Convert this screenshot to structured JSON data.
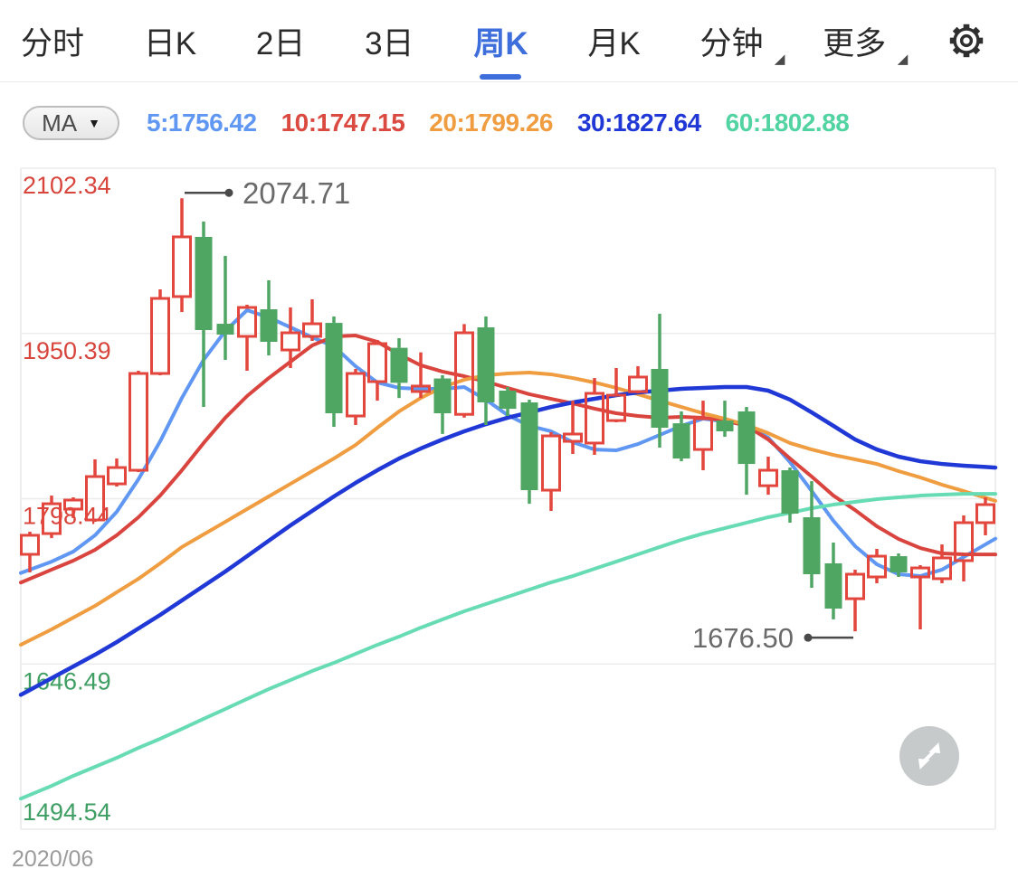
{
  "nav": {
    "items": [
      {
        "label": "分时",
        "active": false,
        "dropdown": false
      },
      {
        "label": "日K",
        "active": false,
        "dropdown": false
      },
      {
        "label": "2日",
        "active": false,
        "dropdown": false
      },
      {
        "label": "3日",
        "active": false,
        "dropdown": false
      },
      {
        "label": "周K",
        "active": true,
        "dropdown": false
      },
      {
        "label": "月K",
        "active": false,
        "dropdown": false
      },
      {
        "label": "分钟",
        "active": false,
        "dropdown": true
      },
      {
        "label": "更多",
        "active": false,
        "dropdown": true
      }
    ],
    "dropdown_marker": "◢",
    "active_color": "#3d6edb",
    "settings_icon": "gear-icon"
  },
  "indicator_bar": {
    "selector_label": "MA",
    "dropdown_icon": "▼",
    "values": [
      {
        "label": "5:1756.42",
        "color": "#5f97f2"
      },
      {
        "label": "10:1747.15",
        "color": "#db4a41"
      },
      {
        "label": "20:1799.26",
        "color": "#ef9d40"
      },
      {
        "label": "30:1827.64",
        "color": "#2038d5"
      },
      {
        "label": "60:1802.88",
        "color": "#52d3a2"
      }
    ]
  },
  "chart_data": {
    "type": "candlestick",
    "period": "weekly",
    "xlabel_start": "2020/06",
    "ylim": [
      1494.54,
      2102.34
    ],
    "grid": true,
    "y_ticks": [
      {
        "text": "2102.34",
        "color": "#d8453d"
      },
      {
        "text": "1950.39",
        "color": "#d8453d"
      },
      {
        "text": "1798.44",
        "color": "#d8453d"
      },
      {
        "text": "1646.49",
        "color": "#3f9e63"
      },
      {
        "text": "1494.54",
        "color": "#3f9e63"
      }
    ],
    "up_color": "#e2463d",
    "down_color": "#4ea662",
    "annotations": {
      "high": {
        "text": "2074.71",
        "value": 2074.71,
        "candle_index": 7
      },
      "low": {
        "text": "1676.50",
        "value": 1676.5,
        "candle_index": 38
      }
    },
    "candles_format": [
      "open",
      "high",
      "low",
      "close"
    ],
    "candles": [
      [
        1747.3,
        1768.1,
        1730.7,
        1764.8
      ],
      [
        1766.4,
        1801.3,
        1762.2,
        1793.8
      ],
      [
        1788.9,
        1799.7,
        1780.6,
        1797.2
      ],
      [
        1778.9,
        1834.6,
        1777.2,
        1818.8
      ],
      [
        1812.1,
        1835.4,
        1809.6,
        1827.1
      ],
      [
        1824.6,
        1916.1,
        1822.9,
        1913.6
      ],
      [
        1913.6,
        1990.9,
        1911.9,
        1982.6
      ],
      [
        1984.3,
        2074.7,
        1970.1,
        2039.2
      ],
      [
        2039.2,
        2053.3,
        1882.8,
        1953.5
      ],
      [
        1959.3,
        2021.7,
        1926.1,
        1949.3
      ],
      [
        1947.7,
        1976.8,
        1916.1,
        1974.3
      ],
      [
        1972.6,
        1999.3,
        1930.2,
        1942.7
      ],
      [
        1935.2,
        1974.3,
        1918.6,
        1951.0
      ],
      [
        1947.7,
        1981.8,
        1943.5,
        1959.3
      ],
      [
        1960.1,
        1966.0,
        1864.5,
        1877.0
      ],
      [
        1874.5,
        1917.8,
        1866.2,
        1913.6
      ],
      [
        1906.1,
        1944.4,
        1888.6,
        1941.0
      ],
      [
        1937.2,
        1946.0,
        1891.0,
        1905.0
      ],
      [
        1897.0,
        1933.0,
        1891.0,
        1902.0
      ],
      [
        1909.0,
        1912.0,
        1858.0,
        1877.0
      ],
      [
        1876.0,
        1959.0,
        1873.0,
        1951.0
      ],
      [
        1956.0,
        1966.0,
        1866.2,
        1887.0
      ],
      [
        1897.8,
        1901.1,
        1874.5,
        1881.1
      ],
      [
        1887.0,
        1889.5,
        1793.8,
        1806.3
      ],
      [
        1806.3,
        1859.6,
        1787.2,
        1856.2
      ],
      [
        1851.2,
        1888.6,
        1839.6,
        1857.9
      ],
      [
        1849.6,
        1909.4,
        1838.8,
        1895.3
      ],
      [
        1870.3,
        1918.6,
        1868.7,
        1893.6
      ],
      [
        1896.9,
        1920.3,
        1895.3,
        1910.3
      ],
      [
        1917.8,
        1968.5,
        1845.4,
        1863.7
      ],
      [
        1867.8,
        1878.7,
        1832.9,
        1835.4
      ],
      [
        1843.7,
        1888.6,
        1824.6,
        1872.0
      ],
      [
        1870.3,
        1888.6,
        1855.4,
        1860.4
      ],
      [
        1878.7,
        1882.8,
        1802.1,
        1830.4
      ],
      [
        1810.4,
        1837.1,
        1802.1,
        1824.6
      ],
      [
        1824.6,
        1827.1,
        1776.4,
        1784.7
      ],
      [
        1781.4,
        1814.6,
        1716.5,
        1729.0
      ],
      [
        1739.0,
        1758.1,
        1687.5,
        1697.4
      ],
      [
        1706.5,
        1733.2,
        1676.5,
        1729.0
      ],
      [
        1726.5,
        1752.3,
        1720.7,
        1745.6
      ],
      [
        1745.6,
        1748.1,
        1726.5,
        1730.7
      ],
      [
        1726.5,
        1737.3,
        1678.3,
        1734.8
      ],
      [
        1724.9,
        1756.4,
        1720.7,
        1744.0
      ],
      [
        1741.5,
        1783.1,
        1722.4,
        1776.4
      ],
      [
        1776.4,
        1799.7,
        1764.8,
        1793.0
      ]
    ],
    "ma_series": [
      {
        "name": "MA5",
        "color": "#5f97f2",
        "width": 4,
        "values": [
          1733.2,
          1740.6,
          1749.8,
          1764.8,
          1786.4,
          1816.3,
          1851.2,
          1891.1,
          1926.1,
          1952.7,
          1971.8,
          1965.1,
          1956.0,
          1946.8,
          1938.5,
          1920.2,
          1905.3,
          1900.3,
          1899.5,
          1899.5,
          1901.1,
          1889.5,
          1875.3,
          1865.4,
          1860.4,
          1850.4,
          1843.7,
          1842.9,
          1848.7,
          1857.0,
          1865.4,
          1872.0,
          1869.5,
          1866.2,
          1854.6,
          1832.1,
          1805.5,
          1778.1,
          1754.8,
          1738.1,
          1729.0,
          1727.3,
          1733.2,
          1744.8,
          1756.4
        ]
      },
      {
        "name": "MA10",
        "color": "#d9453e",
        "width": 4,
        "values": [
          1724.8,
          1733.2,
          1741.5,
          1751.4,
          1764.8,
          1781.4,
          1801.3,
          1824.6,
          1849.6,
          1872.9,
          1892.8,
          1909.4,
          1924.4,
          1939.4,
          1947.7,
          1948.5,
          1942.7,
          1931.1,
          1921.1,
          1915.3,
          1911.1,
          1906.1,
          1900.3,
          1894.5,
          1890.3,
          1886.1,
          1881.2,
          1877.0,
          1874.5,
          1872.9,
          1873.7,
          1872.9,
          1870.4,
          1865.4,
          1852.9,
          1835.4,
          1818.8,
          1801.3,
          1788.0,
          1773.1,
          1761.4,
          1753.1,
          1748.1,
          1747.3,
          1747.2
        ]
      },
      {
        "name": "MA20",
        "color": "#ef9d40",
        "width": 4,
        "values": [
          1668.3,
          1678.3,
          1689.1,
          1699.9,
          1712.4,
          1724.8,
          1739.0,
          1754.0,
          1765.6,
          1777.2,
          1788.9,
          1800.5,
          1812.1,
          1823.8,
          1835.4,
          1847.9,
          1863.7,
          1878.7,
          1891.1,
          1901.1,
          1907.8,
          1911.9,
          1913.6,
          1914.4,
          1912.8,
          1909.4,
          1905.3,
          1900.3,
          1894.5,
          1888.6,
          1882.8,
          1877.0,
          1872.0,
          1866.2,
          1858.7,
          1849.6,
          1843.7,
          1838.7,
          1834.6,
          1830.4,
          1823.8,
          1818.0,
          1811.3,
          1805.5,
          1799.3
        ]
      },
      {
        "name": "MA30",
        "color": "#2038d5",
        "width": 4.5,
        "values": [
          1622.6,
          1633.4,
          1644.2,
          1655.0,
          1666.6,
          1679.1,
          1691.6,
          1704.9,
          1718.2,
          1731.5,
          1745.6,
          1759.8,
          1773.9,
          1787.2,
          1800.5,
          1813.0,
          1824.6,
          1835.4,
          1844.6,
          1852.9,
          1860.4,
          1867.0,
          1872.9,
          1877.8,
          1882.8,
          1887.0,
          1890.3,
          1893.6,
          1896.1,
          1897.8,
          1899.5,
          1900.3,
          1901.1,
          1901.1,
          1897.8,
          1889.5,
          1877.8,
          1865.4,
          1852.9,
          1843.7,
          1837.1,
          1832.9,
          1830.4,
          1828.8,
          1827.6
        ]
      },
      {
        "name": "MA60",
        "color": "#67dcb4",
        "width": 4,
        "values": [
          1526.1,
          1534.4,
          1543.6,
          1551.9,
          1560.2,
          1569.3,
          1577.7,
          1586.8,
          1596.0,
          1605.1,
          1614.3,
          1623.4,
          1631.7,
          1640.0,
          1647.5,
          1655.8,
          1664.1,
          1671.6,
          1679.9,
          1687.4,
          1694.9,
          1701.6,
          1708.2,
          1714.9,
          1721.5,
          1727.3,
          1734.0,
          1740.6,
          1747.3,
          1754.0,
          1760.6,
          1766.4,
          1771.4,
          1776.4,
          1781.4,
          1785.5,
          1789.7,
          1793.0,
          1795.5,
          1798.0,
          1799.7,
          1801.3,
          1802.2,
          1802.9,
          1802.9
        ]
      }
    ]
  },
  "expand_button": {
    "icon": "expand-arrows-icon"
  }
}
